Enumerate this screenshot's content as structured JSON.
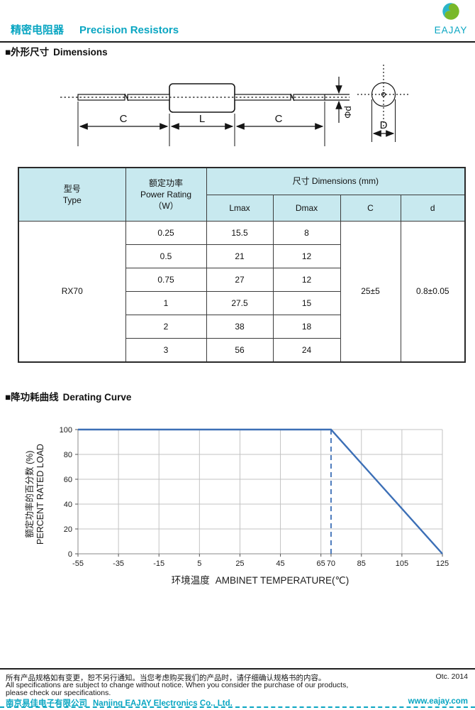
{
  "theme": {
    "accent": "#0aa6c2",
    "logo_teal": "#2bb5c9",
    "logo_green": "#79b829",
    "table_header_bg": "#c8e9ef"
  },
  "header": {
    "title_zh": "精密电阻器",
    "title_en": "Precision Resistors",
    "logo_word": "EAJAY"
  },
  "sections": {
    "dimensions_zh": "■外形尺寸",
    "dimensions_en": "Dimensions",
    "derating_zh": "■降功耗曲线",
    "derating_en": "Derating Curve"
  },
  "drawing": {
    "labels": {
      "lead_left": "C",
      "body_length": "L",
      "lead_right": "C",
      "lead_diameter": "Φd",
      "body_diameter": "D"
    }
  },
  "table": {
    "header": {
      "type_zh": "型号",
      "type_en": "Type",
      "power_zh": "额定功率",
      "power_en": "Power Rating",
      "power_unit": "（W）",
      "dims_group": "尺寸 Dimensions (mm)",
      "col_lmax": "Lmax",
      "col_dmax": "Dmax",
      "col_c": "C",
      "col_d": "d"
    },
    "type_value": "RX70",
    "rows": [
      {
        "power": "0.25",
        "lmax": "15.5",
        "dmax": "8"
      },
      {
        "power": "0.5",
        "lmax": "21",
        "dmax": "12"
      },
      {
        "power": "0.75",
        "lmax": "27",
        "dmax": "12"
      },
      {
        "power": "1",
        "lmax": "27.5",
        "dmax": "15"
      },
      {
        "power": "2",
        "lmax": "38",
        "dmax": "18"
      },
      {
        "power": "3",
        "lmax": "56",
        "dmax": "24"
      }
    ],
    "c_value": "25±5",
    "d_value": "0.8±0.05"
  },
  "chart_data": {
    "type": "line",
    "title": "",
    "xlabel_zh": "环境温度",
    "xlabel_en": "AMBINET TEMPERATURE(℃)",
    "ylabel_zh": "额定功率的百分数 (%)",
    "ylabel_en": "PERCENT RATED LOAD",
    "xlim": [
      -55,
      125
    ],
    "ylim": [
      0,
      100
    ],
    "x_gridlines": [
      -55,
      -35,
      -15,
      5,
      25,
      45,
      65,
      85,
      105,
      125
    ],
    "x_tick_labels": [
      -55,
      -35,
      -15,
      5,
      25,
      45,
      65,
      70,
      85,
      105,
      125
    ],
    "y_ticks": [
      0,
      20,
      40,
      60,
      80,
      100
    ],
    "grid": true,
    "legend": "none",
    "dashed_marker_x": 70,
    "line_color": "#3c6fb6",
    "grid_color": "#c3c3c3",
    "axis_color": "#8a8a8a",
    "series": [
      {
        "name": "derating curve",
        "points": [
          [
            -55,
            100
          ],
          [
            70,
            100
          ],
          [
            125,
            0
          ]
        ]
      }
    ]
  },
  "footer": {
    "notice_zh": "所有产品规格如有变更，恕不另行通知。当您考虑购买我们的产品时，请仔细确认规格书的内容。",
    "notice_en1": "All specifications are subject to change without notice. When you consider the purchase of our products,",
    "notice_en2": "please check our specifications.",
    "date": "Otc. 2014",
    "company_zh": "南京易佳电子有限公司",
    "company_en": "Nanjing EAJAY Electronics Co., Ltd.",
    "website": "www.eajay.com"
  }
}
